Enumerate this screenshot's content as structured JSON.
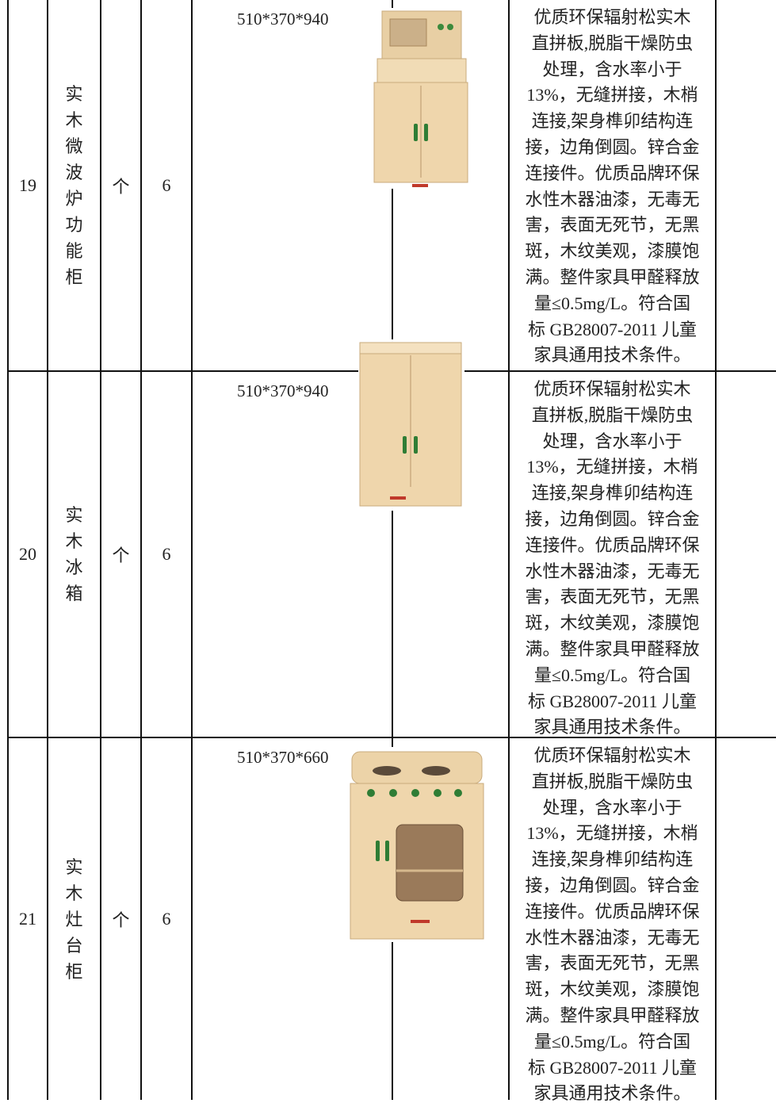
{
  "table": {
    "rows": [
      {
        "no": "19",
        "name": "实木微波炉功能柜",
        "unit": "个",
        "qty": "6",
        "size": "510*370*940",
        "desc": [
          "优质环保辐射松实木",
          "直拼板,脱脂干燥防虫",
          "处理，含水率小于",
          "13%，无缝拼接，木梢",
          "连接,架身榫卯结构连",
          "接，边角倒圆。锌合金",
          "连接件。优质品牌环保",
          "水性木器油漆，无毒无",
          "害，表面无死节，无黑",
          "斑，木纹美观，漆膜饱",
          "满。整件家具甲醛释放",
          "量≤0.5mg/L。符合国",
          "标 GB28007-2011 儿童",
          "家具通用技术条件。"
        ]
      },
      {
        "no": "20",
        "name": "实木冰箱",
        "unit": "个",
        "qty": "6",
        "size": "510*370*940",
        "desc": [
          "优质环保辐射松实木",
          "直拼板,脱脂干燥防虫",
          "处理，含水率小于",
          "13%，无缝拼接，木梢",
          "连接,架身榫卯结构连",
          "接，边角倒圆。锌合金",
          "连接件。优质品牌环保",
          "水性木器油漆，无毒无",
          "害，表面无死节，无黑",
          "斑，木纹美观，漆膜饱",
          "满。整件家具甲醛释放",
          "量≤0.5mg/L。符合国",
          "标 GB28007-2011 儿童",
          "家具通用技术条件。"
        ]
      },
      {
        "no": "21",
        "name": "实木灶台柜",
        "unit": "个",
        "qty": "6",
        "size": "510*370*660",
        "desc": [
          "优质环保辐射松实木",
          "直拼板,脱脂干燥防虫",
          "处理，含水率小于",
          "13%，无缝拼接，木梢",
          "连接,架身榫卯结构连",
          "接，边角倒圆。锌合金",
          "连接件。优质品牌环保",
          "水性木器油漆，无毒无",
          "害，表面无死节，无黑",
          "斑，木纹美观，漆膜饱",
          "满。整件家具甲醛释放",
          "量≤0.5mg/L。符合国",
          "标 GB28007-2011 儿童",
          "家具通用技术条件。"
        ]
      }
    ]
  }
}
